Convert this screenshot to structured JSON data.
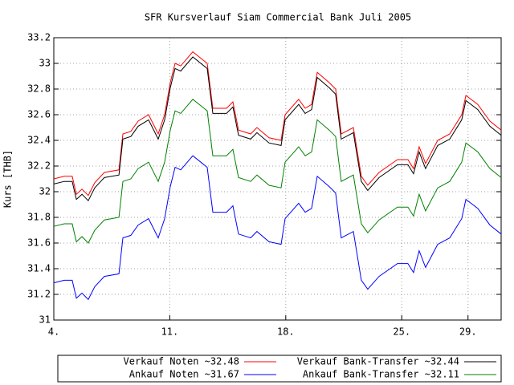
{
  "chart_data": {
    "type": "line",
    "title": "SFR Kursverlauf Siam Commercial Bank Juli 2005",
    "y_label": "Kurs [THB]",
    "x": [
      4.0,
      4.63,
      5.11,
      5.36,
      5.7,
      6.08,
      6.47,
      7.05,
      7.93,
      8.17,
      8.65,
      9.09,
      9.72,
      10.3,
      10.69,
      11.03,
      11.32,
      11.66,
      12.39,
      13.26,
      13.6,
      14.42,
      14.81,
      15.15,
      15.88,
      16.26,
      16.99,
      17.72,
      17.96,
      18.78,
      19.17,
      19.56,
      19.9,
      20.62,
      21.01,
      21.35,
      22.08,
      22.56,
      22.95,
      23.63,
      24.74,
      25.37,
      25.71,
      26.05,
      26.44,
      27.17,
      27.9,
      28.62,
      28.87,
      29.59,
      30.32,
      31.0
    ],
    "series": [
      {
        "name": "Verkauf Noten ~32.48",
        "color": "#ff0000",
        "values": [
          32.1,
          32.12,
          32.12,
          31.98,
          32.02,
          31.97,
          32.07,
          32.15,
          32.17,
          32.45,
          32.47,
          32.55,
          32.6,
          32.45,
          32.6,
          32.85,
          33.0,
          32.98,
          33.09,
          33.0,
          32.65,
          32.65,
          32.7,
          32.48,
          32.45,
          32.5,
          32.42,
          32.4,
          32.6,
          32.72,
          32.65,
          32.68,
          32.93,
          32.85,
          32.8,
          32.45,
          32.5,
          32.12,
          32.05,
          32.15,
          32.25,
          32.25,
          32.18,
          32.35,
          32.22,
          32.4,
          32.45,
          32.6,
          32.75,
          32.68,
          32.55,
          32.48
        ]
      },
      {
        "name": "Verkauf Bank-Transfer ~32.44",
        "color": "#000000",
        "values": [
          32.06,
          32.08,
          32.08,
          31.94,
          31.98,
          31.93,
          32.03,
          32.11,
          32.13,
          32.41,
          32.43,
          32.51,
          32.56,
          32.41,
          32.56,
          32.81,
          32.96,
          32.94,
          33.05,
          32.96,
          32.61,
          32.61,
          32.66,
          32.44,
          32.41,
          32.46,
          32.38,
          32.36,
          32.56,
          32.68,
          32.61,
          32.64,
          32.89,
          32.81,
          32.76,
          32.41,
          32.46,
          32.08,
          32.01,
          32.11,
          32.21,
          32.21,
          32.14,
          32.31,
          32.18,
          32.36,
          32.41,
          32.56,
          32.71,
          32.64,
          32.51,
          32.44
        ]
      },
      {
        "name": "Ankauf Noten ~31.67",
        "color": "#0000ff",
        "values": [
          31.29,
          31.31,
          31.31,
          31.17,
          31.21,
          31.16,
          31.26,
          31.34,
          31.36,
          31.64,
          31.66,
          31.74,
          31.79,
          31.64,
          31.79,
          32.04,
          32.19,
          32.17,
          32.28,
          32.19,
          31.84,
          31.84,
          31.89,
          31.67,
          31.64,
          31.69,
          31.61,
          31.59,
          31.79,
          31.91,
          31.84,
          31.87,
          32.12,
          32.04,
          31.99,
          31.64,
          31.69,
          31.31,
          31.24,
          31.34,
          31.44,
          31.44,
          31.37,
          31.54,
          31.41,
          31.59,
          31.64,
          31.79,
          31.94,
          31.87,
          31.74,
          31.67
        ]
      },
      {
        "name": "Ankauf Bank-Transfer ~32.11",
        "color": "#008000",
        "values": [
          31.73,
          31.75,
          31.75,
          31.61,
          31.65,
          31.6,
          31.7,
          31.78,
          31.8,
          32.08,
          32.1,
          32.18,
          32.23,
          32.08,
          32.23,
          32.48,
          32.63,
          32.61,
          32.72,
          32.63,
          32.28,
          32.28,
          32.33,
          32.11,
          32.08,
          32.13,
          32.05,
          32.03,
          32.23,
          32.35,
          32.28,
          32.31,
          32.56,
          32.48,
          32.43,
          32.08,
          32.13,
          31.75,
          31.68,
          31.78,
          31.88,
          31.88,
          31.81,
          31.98,
          31.85,
          32.03,
          32.08,
          32.23,
          32.38,
          32.31,
          32.18,
          32.11
        ]
      }
    ],
    "xlim": [
      4,
      31
    ],
    "xticks": [
      {
        "value": 4,
        "label": "4."
      },
      {
        "value": 11,
        "label": "11."
      },
      {
        "value": 18,
        "label": "18."
      },
      {
        "value": 25,
        "label": "25."
      },
      {
        "value": 29,
        "label": "29."
      }
    ],
    "ylim": [
      31,
      33.2
    ],
    "yticks": [
      31,
      31.2,
      31.4,
      31.6,
      31.8,
      32,
      32.2,
      32.4,
      32.6,
      32.8,
      33,
      33.2
    ],
    "grid": true,
    "legend": "bottom"
  }
}
